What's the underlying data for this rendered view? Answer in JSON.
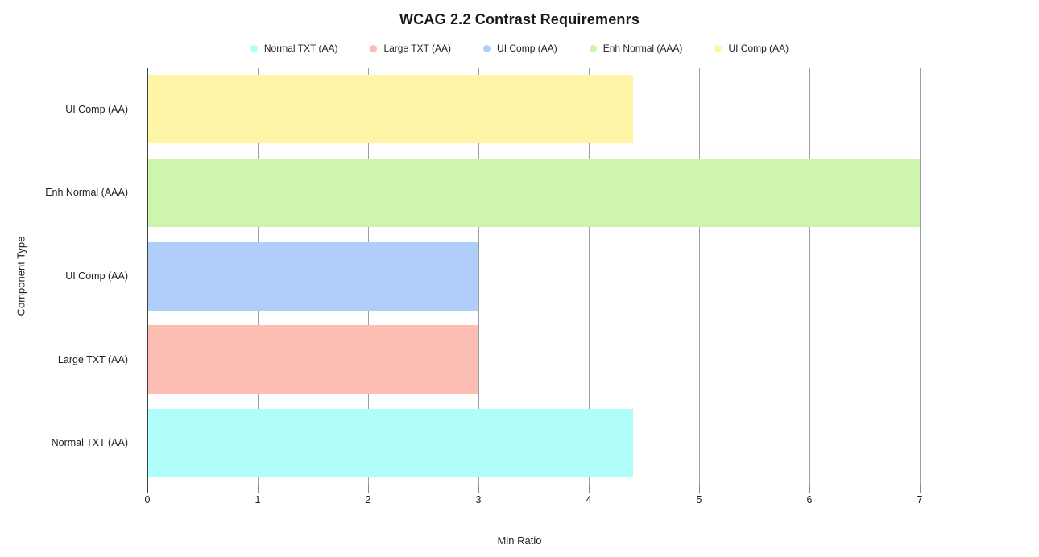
{
  "chart_data": {
    "type": "bar",
    "orientation": "horizontal",
    "title": "WCAG 2.2 Contrast Requiremenrs",
    "xlabel": "Min Ratio",
    "ylabel": "Component Type",
    "categories": [
      "UI Comp (AA)",
      "Enh Normal (AAA)",
      "UI Comp (AA)",
      "Large TXT (AA)",
      "Normal TXT (AA)"
    ],
    "values": [
      4.4,
      7,
      3,
      3,
      4.4
    ],
    "bar_colors": [
      "#FEF6A6",
      "#CEF5AE",
      "#AFCFFA",
      "#FCBDB2",
      "#B0FEFA"
    ],
    "legend": [
      {
        "label": "Normal TXT (AA)",
        "color": "#B0FEFA"
      },
      {
        "label": "Large TXT (AA)",
        "color": "#FCBDB2"
      },
      {
        "label": "UI Comp (AA)",
        "color": "#AFCFFA"
      },
      {
        "label": "Enh Normal (AAA)",
        "color": "#CEF5AE"
      },
      {
        "label": "UI Comp (AA)",
        "color": "#FEF6A6"
      }
    ],
    "legend_position": "top",
    "x_ticks": [
      0,
      1,
      2,
      3,
      4,
      5,
      6,
      7
    ],
    "xlim": [
      0,
      7.75
    ],
    "grid": "vertical"
  },
  "style_colors": {
    "gridline": "#9aa0a6",
    "axis_line": "#3c4043",
    "tick_text": "#202124",
    "title_text": "#17191c",
    "background": "#ffffff"
  }
}
